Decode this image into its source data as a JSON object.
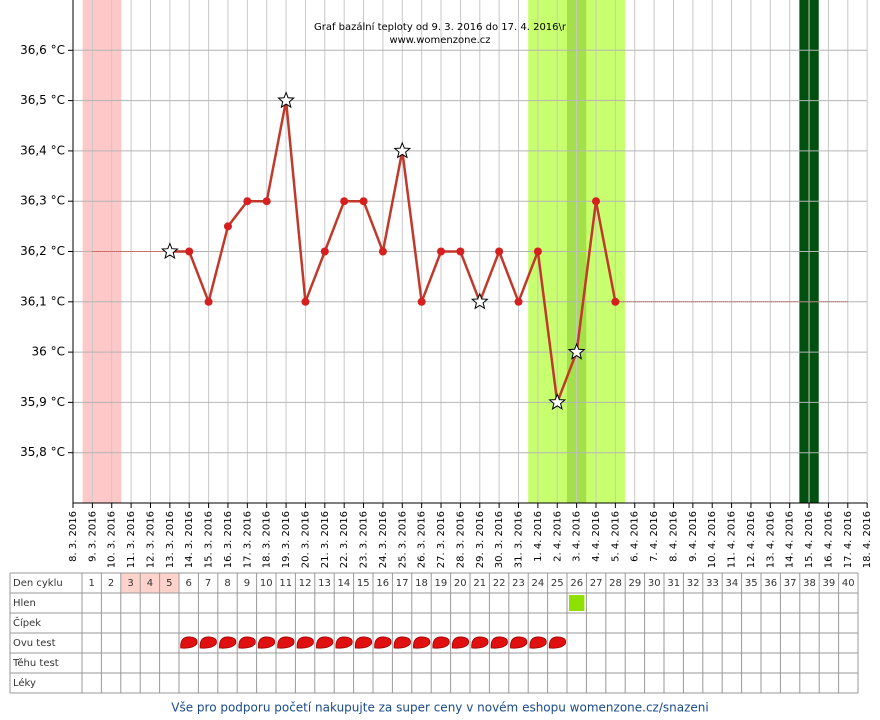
{
  "chart_data": {
    "type": "line",
    "title": "Graf bazální teploty od 9. 3. 2016 do 17. 4. 2016\\r",
    "subtitle": "www.womenzone.cz",
    "categories": [
      "8. 3. 2016",
      "9. 3. 2016",
      "10. 3. 2016",
      "11. 3. 2016",
      "12. 3. 2016",
      "13. 3. 2016",
      "14. 3. 2016",
      "15. 3. 2016",
      "16. 3. 2016",
      "17. 3. 2016",
      "18. 3. 2016",
      "19. 3. 2016",
      "20. 3. 2016",
      "21. 3. 2016",
      "22. 3. 2016",
      "23. 3. 2016",
      "24. 3. 2016",
      "25. 3. 2016",
      "26. 3. 2016",
      "27. 3. 2016",
      "28. 3. 2016",
      "29. 3. 2016",
      "30. 3. 2016",
      "31. 3. 2016",
      "1. 4. 2016",
      "2. 4. 2016",
      "3. 4. 2016",
      "4. 4. 2016",
      "5. 4. 2016",
      "6. 4. 2016",
      "7. 4. 2016",
      "8. 4. 2016",
      "9. 4. 2016",
      "10. 4. 2016",
      "11. 4. 2016",
      "12. 4. 2016",
      "13. 4. 2016",
      "14. 4. 2016",
      "15. 4. 2016",
      "16. 4. 2016",
      "17. 4. 2016",
      "18. 4. 2016"
    ],
    "values": [
      null,
      null,
      null,
      null,
      null,
      36.2,
      36.2,
      36.1,
      36.25,
      36.3,
      36.3,
      36.5,
      36.1,
      36.2,
      36.3,
      36.3,
      36.2,
      36.4,
      36.1,
      36.2,
      36.2,
      36.1,
      36.2,
      36.1,
      36.2,
      35.9,
      36.0,
      36.3,
      36.1,
      null,
      null,
      null,
      null,
      null,
      null,
      null,
      null,
      null,
      null,
      null,
      null,
      null
    ],
    "fill_values": [
      null,
      36.2,
      36.2,
      36.2,
      36.2,
      36.2,
      null,
      null,
      null,
      null,
      null,
      null,
      null,
      null,
      null,
      null,
      null,
      null,
      null,
      null,
      null,
      null,
      null,
      null,
      null,
      null,
      null,
      null,
      36.1,
      36.1,
      36.1,
      36.1,
      36.1,
      36.1,
      36.1,
      36.1,
      36.1,
      36.1,
      36.1,
      36.1,
      36.1,
      null
    ],
    "stars": [
      5,
      11,
      17,
      21,
      25,
      26
    ],
    "color": "#c0392b",
    "fill_color": "#c0392b",
    "bands": [
      {
        "from": 0.5,
        "to": 2.5,
        "color": "#ffc8c8"
      },
      {
        "from": 23.5,
        "to": 28.5,
        "color": "#c8ff6e"
      },
      {
        "from": 25.5,
        "to": 26.5,
        "color": "#a4e04a"
      },
      {
        "from": 37.5,
        "to": 38.5,
        "color": "#005010"
      }
    ],
    "ylim": [
      35.7,
      36.7
    ],
    "yticks": [
      {
        "value": 35.8,
        "label": "35,8 °C"
      },
      {
        "value": 35.9,
        "label": "35,9 °C"
      },
      {
        "value": 36.0,
        "label": "36 °C"
      },
      {
        "value": 36.1,
        "label": "36,1 °C"
      },
      {
        "value": 36.2,
        "label": "36,2 °C"
      },
      {
        "value": 36.3,
        "label": "36,3 °C"
      },
      {
        "value": 36.4,
        "label": "36,4 °C"
      },
      {
        "value": 36.5,
        "label": "36,5 °C"
      },
      {
        "value": 36.6,
        "label": "36,6 °C"
      }
    ],
    "grid": true
  },
  "table": {
    "rows": [
      "Den cyklu",
      "Hlen",
      "Čípek",
      "Ovu test",
      "Těhu test",
      "Léky"
    ],
    "days": [
      1,
      2,
      3,
      4,
      5,
      6,
      7,
      8,
      9,
      10,
      11,
      12,
      13,
      14,
      15,
      16,
      17,
      18,
      19,
      20,
      21,
      22,
      23,
      24,
      25,
      26,
      27,
      28,
      29,
      30,
      31,
      32,
      33,
      34,
      35,
      36,
      37,
      38,
      39,
      40
    ],
    "highlight_days": [
      3,
      4,
      5
    ],
    "hlen_days": [
      26
    ],
    "ovu_days": [
      6,
      7,
      8,
      9,
      10,
      11,
      12,
      13,
      14,
      15,
      16,
      17,
      18,
      19,
      20,
      21,
      22,
      23,
      24,
      25
    ]
  },
  "footer": "Vše pro podporu početí nakupujte za super ceny v novém eshopu womenzone.cz/snazeni"
}
